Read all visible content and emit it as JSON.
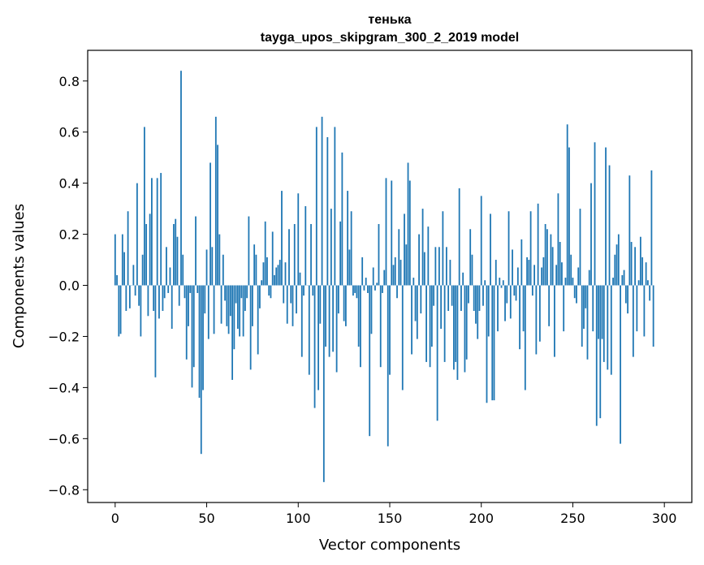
{
  "chart_data": {
    "type": "bar",
    "title": "тенька",
    "subtitle": "tayga_upos_skipgram_300_2_2019 model",
    "xlabel": "Vector components",
    "ylabel": "Components values",
    "xlim": [
      -15,
      315
    ],
    "ylim": [
      -0.85,
      0.92
    ],
    "xticks": [
      0,
      50,
      100,
      150,
      200,
      250,
      300
    ],
    "yticks": [
      -0.8,
      -0.6,
      -0.4,
      -0.2,
      0.0,
      0.2,
      0.4,
      0.6,
      0.8
    ],
    "grid": false,
    "bar_color": "#1f77b4",
    "values": [
      0.2,
      0.04,
      -0.2,
      -0.19,
      0.2,
      0.13,
      -0.1,
      0.29,
      -0.09,
      0.0,
      0.08,
      -0.04,
      0.4,
      -0.08,
      -0.2,
      0.12,
      0.62,
      0.24,
      -0.12,
      0.28,
      0.42,
      -0.1,
      -0.36,
      0.42,
      -0.13,
      0.44,
      -0.1,
      -0.05,
      0.15,
      -0.03,
      0.07,
      -0.17,
      0.24,
      0.26,
      0.19,
      -0.08,
      0.84,
      0.12,
      -0.05,
      -0.29,
      -0.16,
      -0.03,
      -0.4,
      -0.32,
      0.27,
      -0.03,
      -0.44,
      -0.66,
      -0.41,
      -0.11,
      0.14,
      -0.21,
      0.48,
      0.15,
      -0.19,
      0.66,
      0.55,
      0.2,
      -0.15,
      0.12,
      -0.06,
      -0.16,
      -0.19,
      -0.12,
      -0.37,
      -0.25,
      -0.07,
      -0.17,
      -0.2,
      -0.05,
      -0.2,
      -0.1,
      -0.05,
      0.27,
      -0.33,
      -0.16,
      0.16,
      0.12,
      -0.27,
      -0.09,
      0.02,
      0.09,
      0.25,
      0.11,
      -0.04,
      -0.05,
      0.21,
      0.04,
      0.07,
      0.08,
      0.1,
      0.37,
      -0.07,
      0.09,
      -0.15,
      0.22,
      -0.07,
      -0.16,
      0.24,
      -0.11,
      0.36,
      0.05,
      -0.28,
      -0.04,
      0.31,
      0.0,
      -0.35,
      0.24,
      -0.04,
      -0.48,
      0.62,
      -0.41,
      -0.15,
      0.66,
      -0.77,
      -0.24,
      0.58,
      -0.28,
      0.3,
      -0.26,
      0.62,
      -0.34,
      -0.11,
      0.25,
      0.52,
      -0.14,
      -0.16,
      0.37,
      0.14,
      0.29,
      -0.04,
      -0.03,
      -0.05,
      -0.24,
      -0.32,
      0.11,
      -0.02,
      0.03,
      -0.03,
      -0.59,
      -0.19,
      0.07,
      -0.02,
      0.01,
      0.24,
      -0.32,
      -0.03,
      0.06,
      0.42,
      -0.63,
      -0.35,
      0.41,
      0.08,
      0.11,
      -0.05,
      0.22,
      0.1,
      -0.41,
      0.28,
      0.16,
      0.48,
      0.41,
      -0.27,
      0.03,
      -0.14,
      -0.21,
      0.2,
      -0.11,
      0.3,
      0.13,
      -0.3,
      0.23,
      -0.32,
      -0.24,
      -0.08,
      0.15,
      -0.53,
      0.15,
      -0.17,
      0.29,
      -0.3,
      0.15,
      -0.1,
      0.1,
      -0.08,
      -0.33,
      -0.3,
      -0.37,
      0.38,
      -0.1,
      0.05,
      -0.34,
      -0.29,
      -0.07,
      0.22,
      0.12,
      -0.1,
      -0.15,
      -0.21,
      -0.1,
      0.35,
      -0.08,
      0.02,
      -0.46,
      -0.2,
      0.28,
      -0.45,
      -0.45,
      0.1,
      -0.18,
      0.03,
      -0.01,
      0.02,
      -0.14,
      -0.07,
      0.29,
      -0.13,
      0.14,
      -0.04,
      -0.06,
      0.07,
      -0.25,
      0.18,
      -0.18,
      -0.41,
      0.11,
      0.1,
      0.29,
      -0.04,
      0.08,
      -0.27,
      0.32,
      -0.22,
      0.07,
      0.11,
      0.24,
      0.22,
      -0.16,
      0.2,
      0.15,
      -0.28,
      0.08,
      0.36,
      0.17,
      0.09,
      -0.18,
      0.03,
      0.63,
      0.54,
      0.12,
      0.03,
      -0.05,
      -0.07,
      0.07,
      0.3,
      -0.24,
      -0.17,
      -0.09,
      -0.29,
      0.06,
      0.4,
      -0.18,
      0.56,
      -0.55,
      -0.21,
      -0.52,
      -0.21,
      -0.3,
      0.54,
      -0.33,
      0.47,
      -0.35,
      0.03,
      0.12,
      0.16,
      0.2,
      -0.62,
      0.04,
      0.06,
      -0.07,
      -0.11,
      0.43,
      0.17,
      -0.28,
      0.15,
      -0.18,
      0.02,
      0.19,
      0.11,
      -0.2,
      0.09,
      0.02,
      -0.06,
      0.45,
      -0.24
    ]
  }
}
